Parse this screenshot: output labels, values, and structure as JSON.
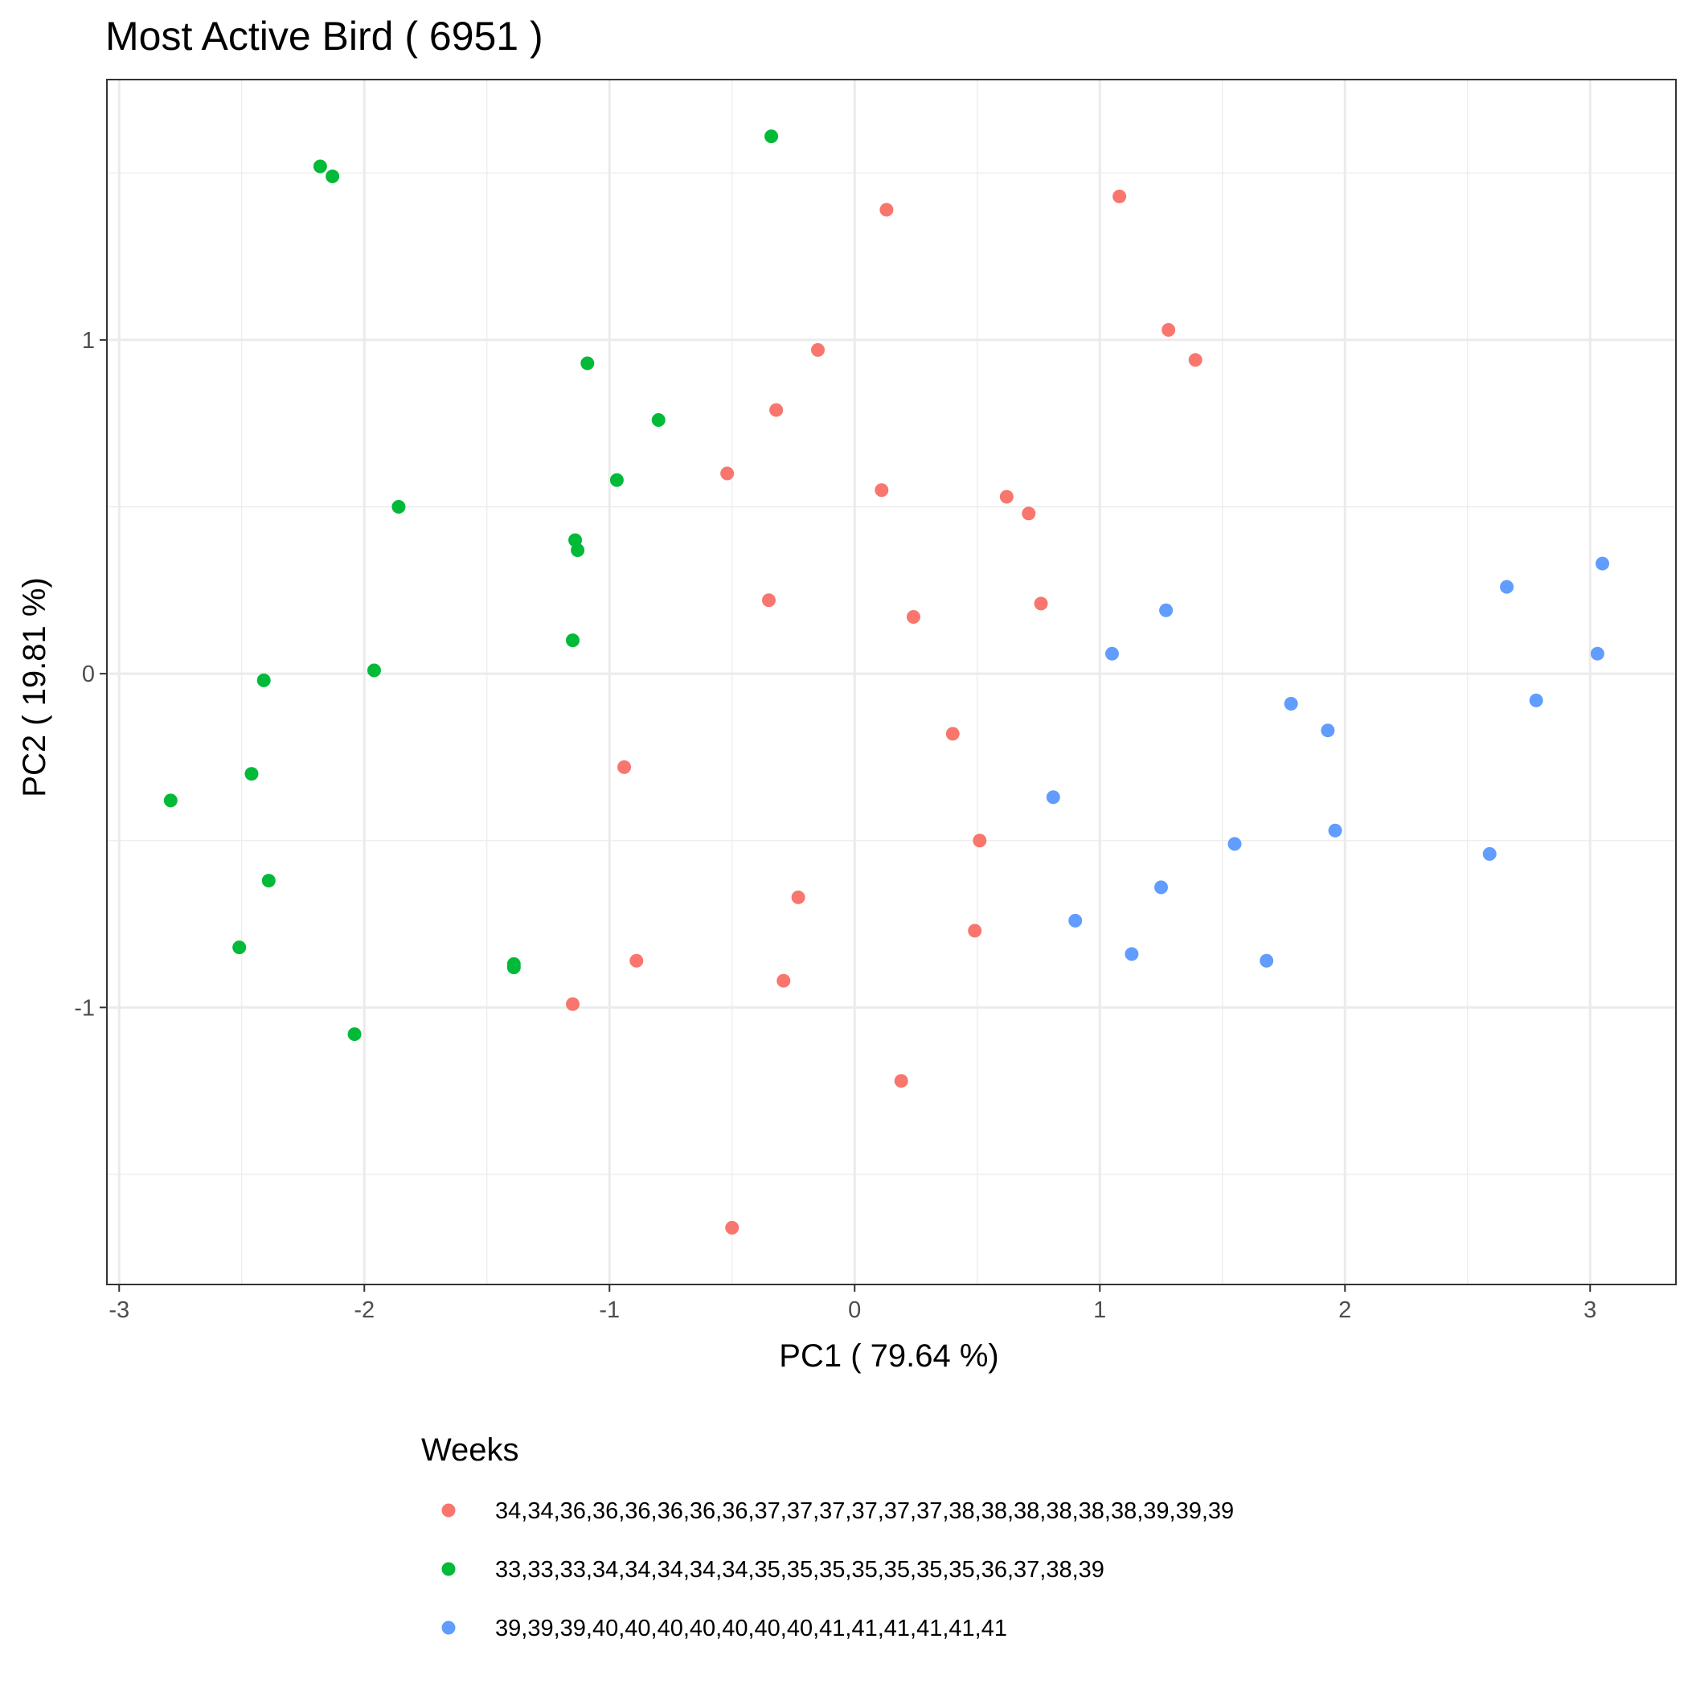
{
  "chart_data": {
    "type": "scatter",
    "title": "Most Active Bird ( 6951 )",
    "xlabel": "PC1 ( 79.64 %)",
    "ylabel": "PC2 ( 19.81 %)",
    "xlim": [
      -3.05,
      3.35
    ],
    "ylim": [
      -1.83,
      1.78
    ],
    "x_ticks": [
      -3,
      -2,
      -1,
      0,
      1,
      2,
      3
    ],
    "y_ticks": [
      -1,
      0,
      1
    ],
    "x_tick_labels": [
      "-3",
      "-2",
      "-1",
      "0",
      "1",
      "2",
      "3"
    ],
    "y_tick_labels": [
      "-1",
      "0",
      "1"
    ],
    "grid": true,
    "legend": {
      "title": "Weeks",
      "position": "bottom"
    },
    "series": [
      {
        "name": "34,34,36,36,36,36,36,36,37,37,37,37,37,37,38,38,38,38,38,38,39,39,39",
        "color": "#F8766D",
        "points": [
          [
            0.13,
            1.39
          ],
          [
            1.08,
            1.43
          ],
          [
            -0.15,
            0.97
          ],
          [
            1.28,
            1.03
          ],
          [
            1.39,
            0.94
          ],
          [
            -0.32,
            0.79
          ],
          [
            -0.52,
            0.6
          ],
          [
            0.11,
            0.55
          ],
          [
            0.62,
            0.53
          ],
          [
            0.71,
            0.48
          ],
          [
            -0.35,
            0.22
          ],
          [
            0.76,
            0.21
          ],
          [
            0.24,
            0.17
          ],
          [
            0.4,
            -0.18
          ],
          [
            -0.94,
            -0.28
          ],
          [
            0.51,
            -0.5
          ],
          [
            -0.23,
            -0.67
          ],
          [
            0.49,
            -0.77
          ],
          [
            -0.89,
            -0.86
          ],
          [
            -0.29,
            -0.92
          ],
          [
            -1.15,
            -0.99
          ],
          [
            0.19,
            -1.22
          ],
          [
            -0.5,
            -1.66
          ]
        ]
      },
      {
        "name": "33,33,33,34,34,34,34,34,35,35,35,35,35,35,35,36,37,38,39",
        "color": "#00BA38",
        "points": [
          [
            -0.34,
            1.61
          ],
          [
            -2.18,
            1.52
          ],
          [
            -2.13,
            1.49
          ],
          [
            -1.09,
            0.93
          ],
          [
            -0.8,
            0.76
          ],
          [
            -0.97,
            0.58
          ],
          [
            -1.86,
            0.5
          ],
          [
            -1.14,
            0.4
          ],
          [
            -1.13,
            0.37
          ],
          [
            -1.15,
            0.1
          ],
          [
            -1.96,
            0.01
          ],
          [
            -2.41,
            -0.02
          ],
          [
            -2.46,
            -0.3
          ],
          [
            -2.79,
            -0.38
          ],
          [
            -2.39,
            -0.62
          ],
          [
            -2.51,
            -0.82
          ],
          [
            -1.39,
            -0.87
          ],
          [
            -1.39,
            -0.88
          ],
          [
            -2.04,
            -1.08
          ]
        ]
      },
      {
        "name": "39,39,39,40,40,40,40,40,40,40,41,41,41,41,41,41",
        "color": "#619CFF",
        "points": [
          [
            3.05,
            0.33
          ],
          [
            2.66,
            0.26
          ],
          [
            1.27,
            0.19
          ],
          [
            1.05,
            0.06
          ],
          [
            3.03,
            0.06
          ],
          [
            2.78,
            -0.08
          ],
          [
            1.78,
            -0.09
          ],
          [
            1.93,
            -0.17
          ],
          [
            0.81,
            -0.37
          ],
          [
            1.96,
            -0.47
          ],
          [
            1.55,
            -0.51
          ],
          [
            2.59,
            -0.54
          ],
          [
            1.25,
            -0.64
          ],
          [
            0.9,
            -0.74
          ],
          [
            1.13,
            -0.84
          ],
          [
            1.68,
            -0.86
          ]
        ]
      }
    ]
  }
}
